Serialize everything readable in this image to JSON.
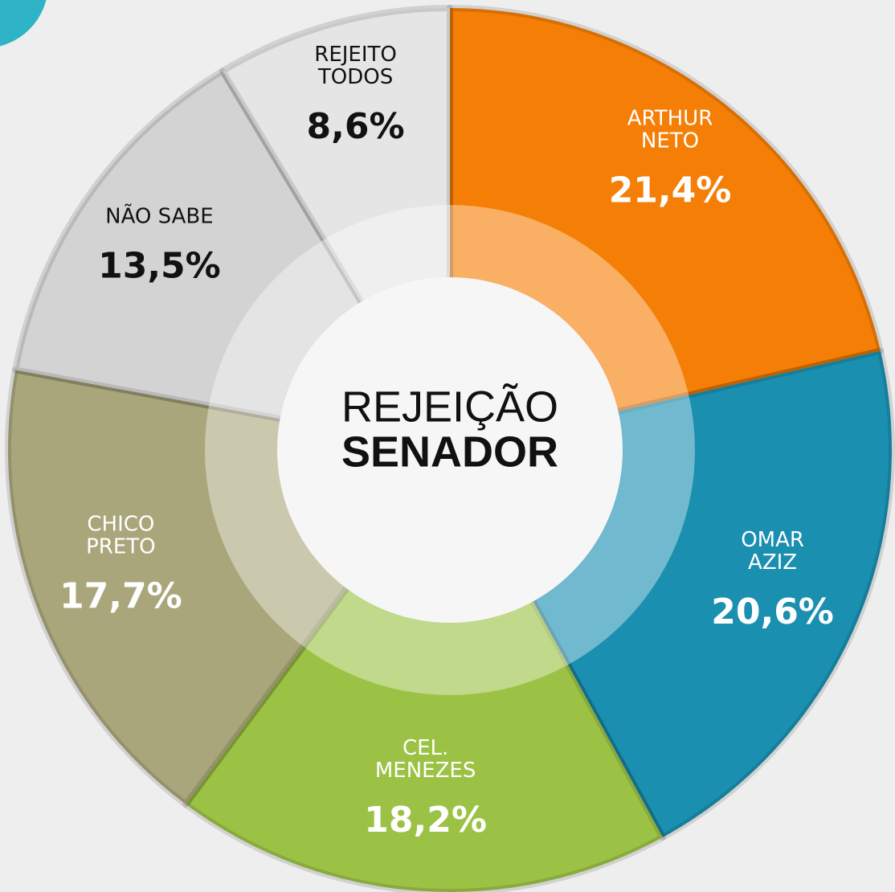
{
  "chart_data": {
    "type": "pie",
    "title": "REJEIÇÃO",
    "subtitle": "SENADOR",
    "categories": [
      "ARTHUR\nNETO",
      "OMAR\nAZIZ",
      "CEL.\nMENEZES",
      "CHICO\nPRETO",
      "NÃO SABE",
      "REJEITO\nTODOS"
    ],
    "values": [
      21.4,
      20.6,
      18.2,
      17.7,
      13.5,
      8.6
    ],
    "value_labels": [
      "21,4%",
      "20,6%",
      "18,2%",
      "17,7%",
      "13,5%",
      "8,6%"
    ],
    "colors": [
      "#f57f06",
      "#1a8fb0",
      "#9cc245",
      "#aaa67b",
      "#d4d3d3",
      "#e6e5e5"
    ],
    "label_colors": [
      "#ffffff",
      "#ffffff",
      "#ffffff",
      "#ffffff",
      "#111111",
      "#111111"
    ]
  }
}
